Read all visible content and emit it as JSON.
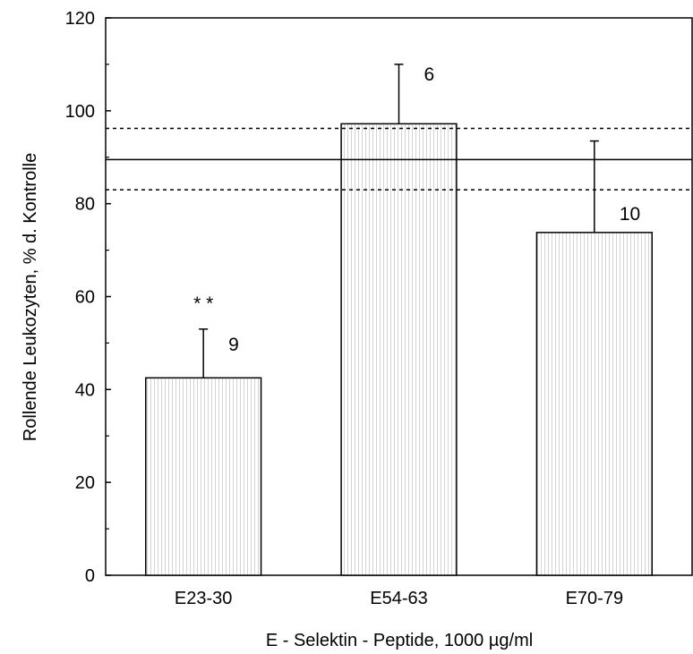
{
  "chart_data": {
    "type": "bar",
    "title": "",
    "xlabel": "E - Selektin - Peptide,  1000 µg/ml",
    "ylabel": "Rollende  Leukozyten, % d. Kontrolle",
    "ylim": [
      0,
      120
    ],
    "yticks": [
      0,
      20,
      40,
      60,
      80,
      100,
      120
    ],
    "categories": [
      "E23-30",
      "E54-63",
      "E70-79"
    ],
    "values": [
      42.5,
      97.2,
      73.8
    ],
    "error_upper": [
      53,
      110,
      93.5
    ],
    "bar_labels": [
      "9",
      "6",
      "10"
    ],
    "significance": [
      "* *",
      "",
      ""
    ],
    "reference_lines": [
      {
        "value": 89.5,
        "style": "solid"
      },
      {
        "value": 96.2,
        "style": "dashed"
      },
      {
        "value": 83.0,
        "style": "dashed"
      }
    ],
    "grid": false,
    "colors": {
      "bar_fill": "#ffffff",
      "bar_hatch": "#cfcfcf",
      "line": "#000000"
    }
  }
}
